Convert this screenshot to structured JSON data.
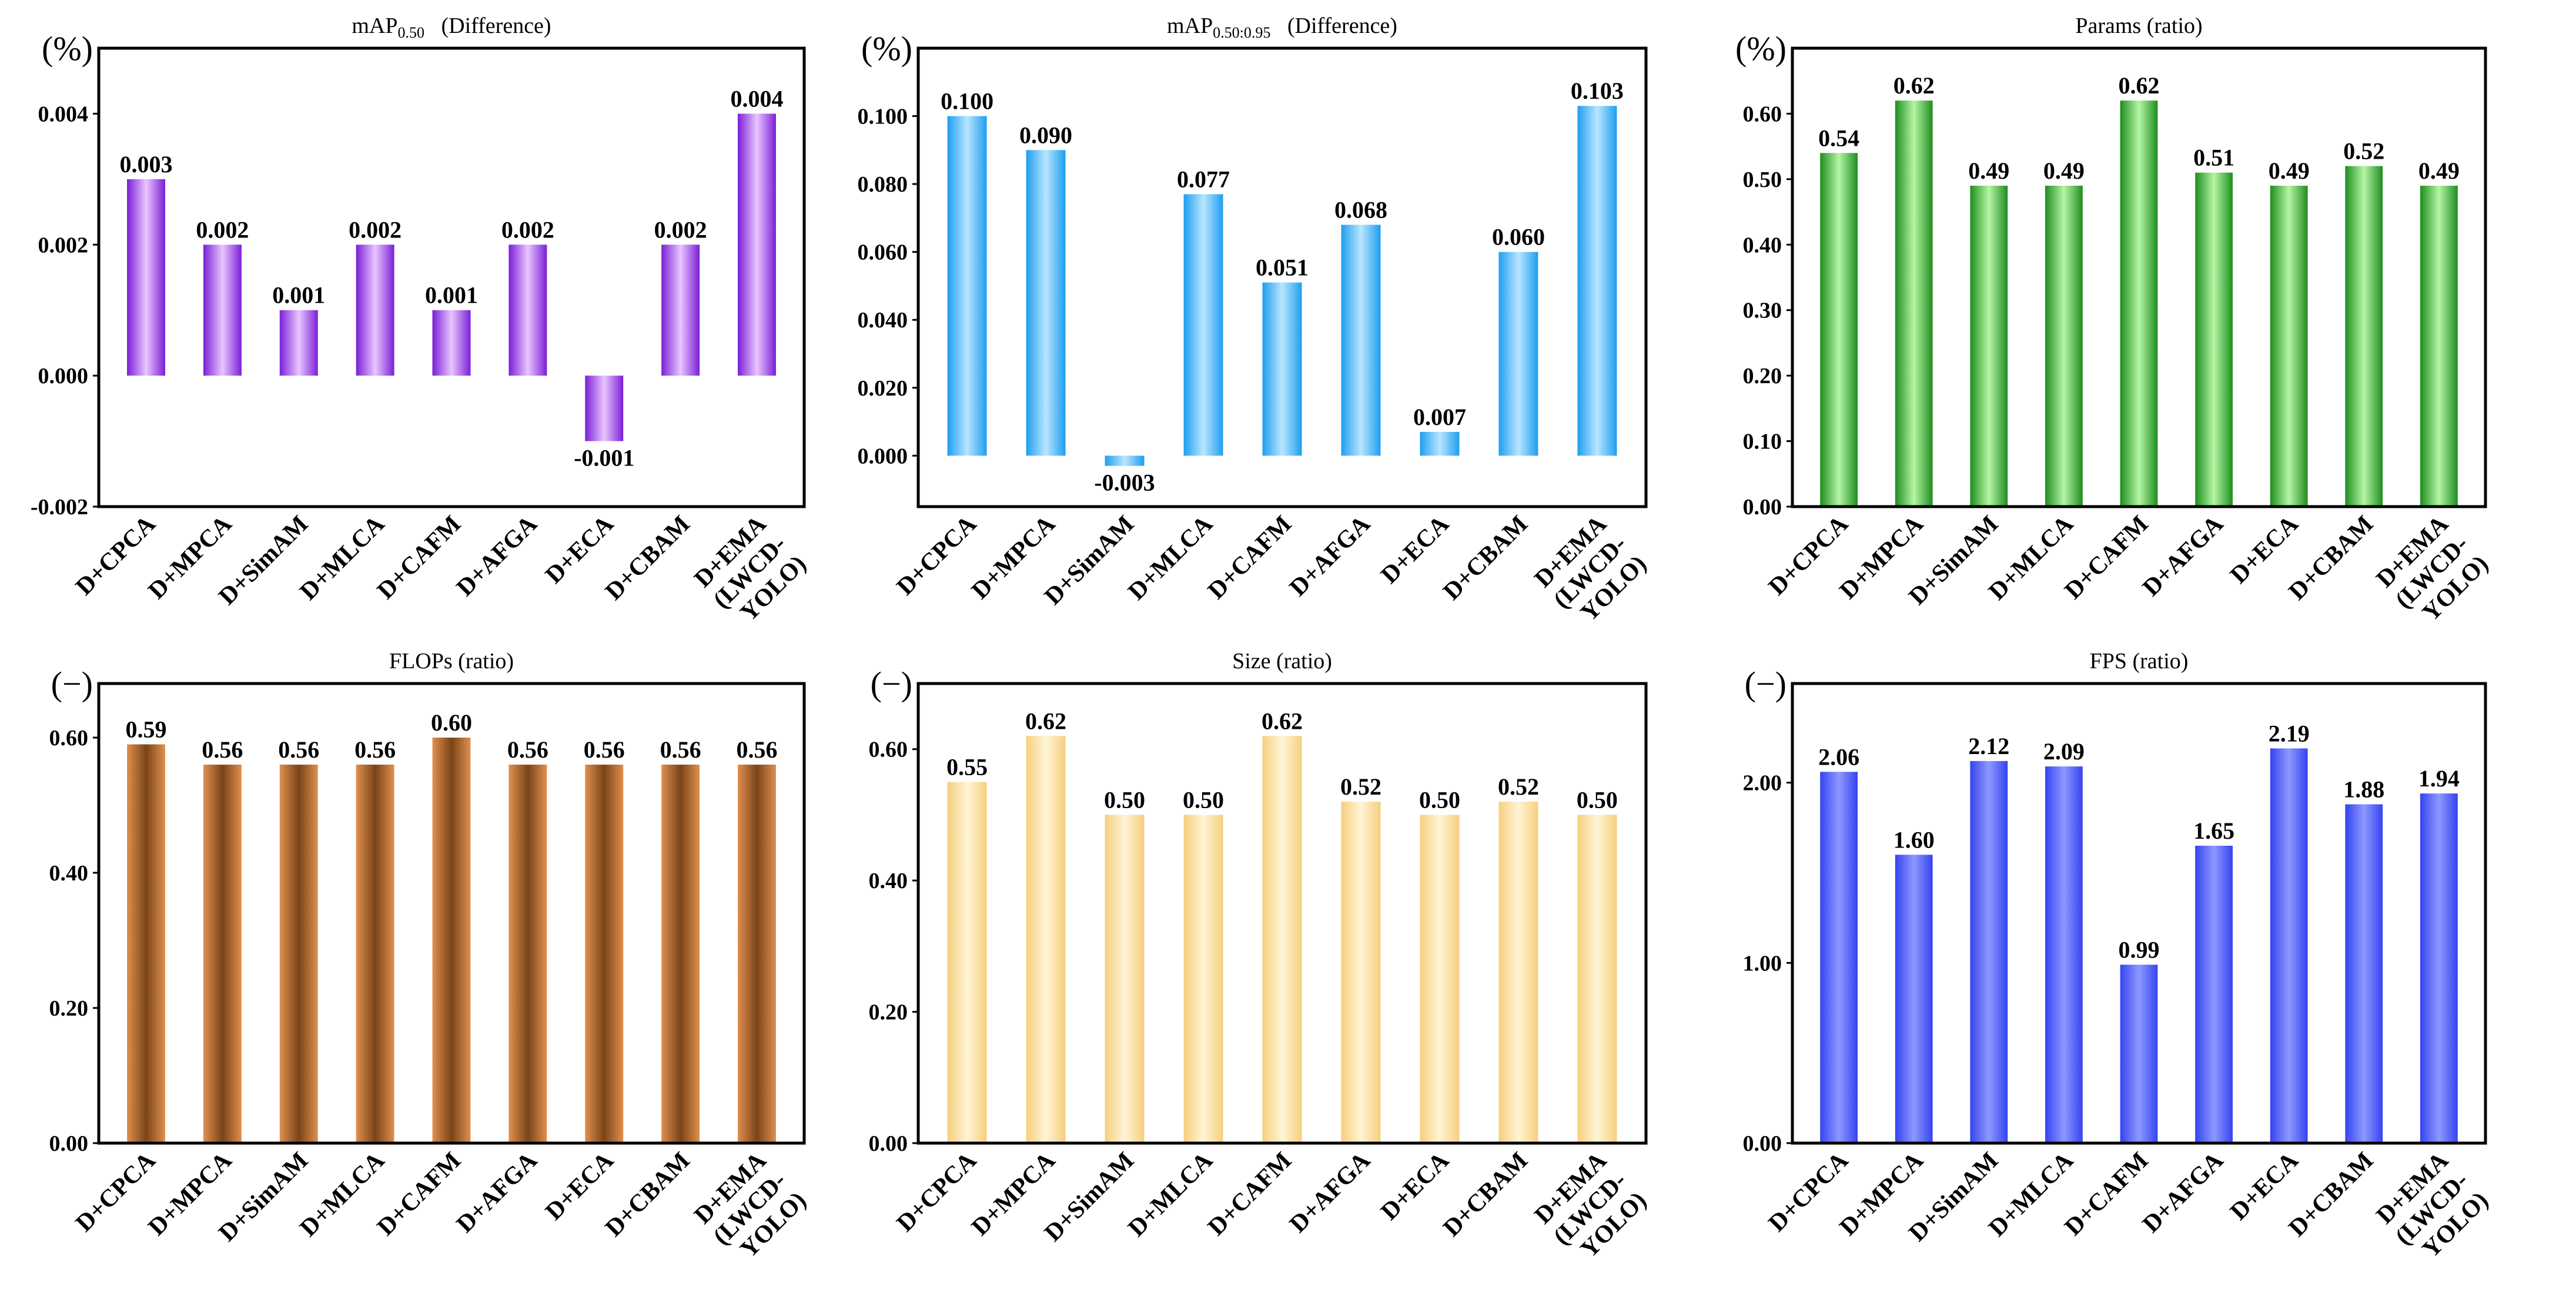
{
  "chart_data": [
    {
      "type": "bar",
      "title": "mAP",
      "title_sub": "0.50",
      "title_suffix": "(Difference)",
      "unit_label": "(%)",
      "categories": [
        "D+CPCA",
        "D+MPCA",
        "D+SimAM",
        "D+MLCA",
        "D+CAFM",
        "D+AFGA",
        "D+ECA",
        "D+CBAM",
        "D+EMA (LWCD-YOLO)"
      ],
      "values": [
        0.003,
        0.002,
        0.001,
        0.002,
        0.001,
        0.002,
        -0.001,
        0.002,
        0.004
      ],
      "value_labels": [
        "0.003",
        "0.002",
        "0.001",
        "0.002",
        "0.001",
        "0.002",
        "-0.001",
        "0.002",
        "0.004"
      ],
      "ylim": [
        -0.002,
        0.005
      ],
      "yticks": [
        -0.002,
        0.0,
        0.002,
        0.004
      ],
      "ytick_labels": [
        "-0.002",
        "0.000",
        "0.002",
        "0.004"
      ],
      "colors": {
        "edge": "#7a1fd6",
        "center": "#e9c5ff"
      }
    },
    {
      "type": "bar",
      "title": "mAP",
      "title_sub": "0.50:0.95",
      "title_suffix": "(Difference)",
      "unit_label": "(%)",
      "categories": [
        "D+CPCA",
        "D+MPCA",
        "D+SimAM",
        "D+MLCA",
        "D+CAFM",
        "D+AFGA",
        "D+ECA",
        "D+CBAM",
        "D+EMA (LWCD-YOLO)"
      ],
      "values": [
        0.1,
        0.09,
        -0.003,
        0.077,
        0.051,
        0.068,
        0.007,
        0.06,
        0.103
      ],
      "value_labels": [
        "0.100",
        "0.090",
        "-0.003",
        "0.077",
        "0.051",
        "0.068",
        "0.007",
        "0.060",
        "0.103"
      ],
      "ylim": [
        -0.015,
        0.12
      ],
      "yticks": [
        0.0,
        0.02,
        0.04,
        0.06,
        0.08,
        0.1
      ],
      "ytick_labels": [
        "0.000",
        "0.020",
        "0.040",
        "0.060",
        "0.080",
        "0.100"
      ],
      "colors": {
        "edge": "#1e9ef0",
        "center": "#b8e6ff"
      }
    },
    {
      "type": "bar",
      "title": "Params (ratio)",
      "title_sub": "",
      "title_suffix": "",
      "unit_label": "(%)",
      "categories": [
        "D+CPCA",
        "D+MPCA",
        "D+SimAM",
        "D+MLCA",
        "D+CAFM",
        "D+AFGA",
        "D+ECA",
        "D+CBAM",
        "D+EMA (LWCD-YOLO)"
      ],
      "values": [
        0.54,
        0.62,
        0.49,
        0.49,
        0.62,
        0.51,
        0.49,
        0.52,
        0.49
      ],
      "value_labels": [
        "0.54",
        "0.62",
        "0.49",
        "0.49",
        "0.62",
        "0.51",
        "0.49",
        "0.52",
        "0.49"
      ],
      "ylim": [
        0.0,
        0.7
      ],
      "yticks": [
        0.0,
        0.1,
        0.2,
        0.3,
        0.4,
        0.5,
        0.6
      ],
      "ytick_labels": [
        "0.00",
        "0.10",
        "0.20",
        "0.30",
        "0.40",
        "0.50",
        "0.60"
      ],
      "colors": {
        "edge": "#1d8e1d",
        "center": "#b6f5a6"
      }
    },
    {
      "type": "bar",
      "title": "FLOPs (ratio)",
      "title_sub": "",
      "title_suffix": "",
      "unit_label": "(−)",
      "categories": [
        "D+CPCA",
        "D+MPCA",
        "D+SimAM",
        "D+MLCA",
        "D+CAFM",
        "D+AFGA",
        "D+ECA",
        "D+CBAM",
        "D+EMA (LWCD-YOLO)"
      ],
      "values": [
        0.59,
        0.56,
        0.56,
        0.56,
        0.6,
        0.56,
        0.56,
        0.56,
        0.56
      ],
      "value_labels": [
        "0.59",
        "0.56",
        "0.56",
        "0.56",
        "0.60",
        "0.56",
        "0.56",
        "0.56",
        "0.56"
      ],
      "ylim": [
        0.0,
        0.68
      ],
      "yticks": [
        0.0,
        0.2,
        0.4,
        0.6
      ],
      "ytick_labels": [
        "0.00",
        "0.20",
        "0.40",
        "0.60"
      ],
      "colors": {
        "edge": "#e0904f",
        "center": "#7a4418"
      }
    },
    {
      "type": "bar",
      "title": "Size (ratio)",
      "title_sub": "",
      "title_suffix": "",
      "unit_label": "(−)",
      "categories": [
        "D+CPCA",
        "D+MPCA",
        "D+SimAM",
        "D+MLCA",
        "D+CAFM",
        "D+AFGA",
        "D+ECA",
        "D+CBAM",
        "D+EMA (LWCD-YOLO)"
      ],
      "values": [
        0.55,
        0.62,
        0.5,
        0.5,
        0.62,
        0.52,
        0.5,
        0.52,
        0.5
      ],
      "value_labels": [
        "0.55",
        "0.62",
        "0.50",
        "0.50",
        "0.62",
        "0.52",
        "0.50",
        "0.52",
        "0.50"
      ],
      "ylim": [
        0.0,
        0.7
      ],
      "yticks": [
        0.0,
        0.2,
        0.4,
        0.6
      ],
      "ytick_labels": [
        "0.00",
        "0.20",
        "0.40",
        "0.60"
      ],
      "colors": {
        "edge": "#f6cf7d",
        "center": "#fff4d6"
      }
    },
    {
      "type": "bar",
      "title": "FPS (ratio)",
      "title_sub": "",
      "title_suffix": "",
      "unit_label": "(−)",
      "categories": [
        "D+CPCA",
        "D+MPCA",
        "D+SimAM",
        "D+MLCA",
        "D+CAFM",
        "D+AFGA",
        "D+ECA",
        "D+CBAM",
        "D+EMA (LWCD-YOLO)"
      ],
      "values": [
        2.06,
        1.6,
        2.12,
        2.09,
        0.99,
        1.65,
        2.19,
        1.88,
        1.94
      ],
      "value_labels": [
        "2.06",
        "1.60",
        "2.12",
        "2.09",
        "0.99",
        "1.65",
        "2.19",
        "1.88",
        "1.94"
      ],
      "ylim": [
        0.0,
        2.55
      ],
      "yticks": [
        0.0,
        1.0,
        2.0
      ],
      "ytick_labels": [
        "0.00",
        "1.00",
        "2.00"
      ],
      "colors": {
        "edge": "#3543f0",
        "center": "#8d99ff"
      }
    }
  ]
}
